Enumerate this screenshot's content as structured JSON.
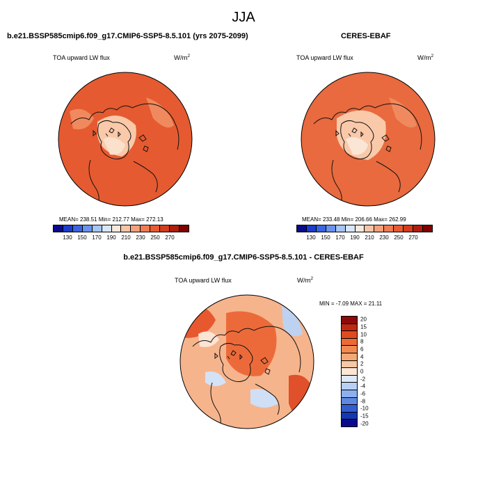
{
  "title": "JJA",
  "panels": [
    {
      "title": "b.e21.BSSP585cmip6.f09_g17.CMIP6-SSP5-8.5.101 (yrs 2075-2099)",
      "variable": "TOA upward LW flux",
      "units_base": "W/m",
      "units_exp": "2",
      "stats": "MEAN= 238.51   Min= 212.77   Max= 272.13",
      "fill": "#e55a30"
    },
    {
      "title": "CERES-EBAF",
      "variable": "TOA upward LW flux",
      "units_base": "W/m",
      "units_exp": "2",
      "stats": "MEAN= 233.48   Min= 206.66   Max= 262.99",
      "fill": "#e86a3e"
    }
  ],
  "abs_colorbar": {
    "colors": [
      "#0a0a8c",
      "#1c3ccc",
      "#3a64e0",
      "#6a92ee",
      "#a6c4f4",
      "#d8e6fa",
      "#fbe8dc",
      "#f8c4a6",
      "#f4a07a",
      "#ee7c54",
      "#e85a32",
      "#d43c1c",
      "#b01e0e",
      "#800000"
    ],
    "labels": [
      "130",
      "150",
      "170",
      "190",
      "210",
      "230",
      "250",
      "270"
    ]
  },
  "diff_panel": {
    "title": "b.e21.BSSP585cmip6.f09_g17.CMIP6-SSP5-8.5.101 - CERES-EBAF",
    "variable": "TOA upward LW flux",
    "units_base": "W/m",
    "units_exp": "2",
    "stats": "MIN =  -7.09 MAX =  21.11"
  },
  "diff_colorbar": {
    "colors": [
      "#8c0a0a",
      "#c02810",
      "#e04a1e",
      "#ec6a36",
      "#f08a52",
      "#f4a876",
      "#f8c8a4",
      "#fce6d6",
      "#dde8f8",
      "#b8d0f4",
      "#8cb0ee",
      "#5e88e2",
      "#345ed0",
      "#1438b4",
      "#0a0a8c"
    ],
    "labels": [
      "20",
      "15",
      "10",
      "8",
      "6",
      "4",
      "2",
      "0",
      "-2",
      "-4",
      "-6",
      "-8",
      "-10",
      "-15",
      "-20"
    ]
  },
  "colors": {
    "land_line": "#111111",
    "warm_patch": "#f08a5e",
    "cool_patch": "#bcd2f0",
    "pale_patch": "#f9c9a9"
  }
}
